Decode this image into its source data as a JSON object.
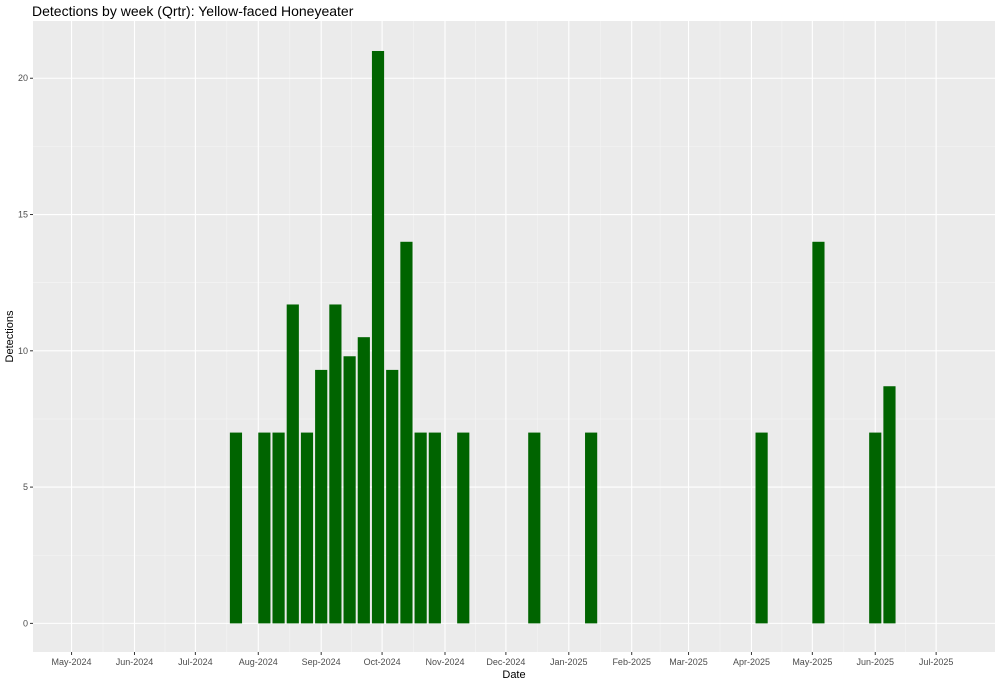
{
  "chart_data": {
    "type": "bar",
    "title": "Detections by week (Qrtr): Yellow-faced Honeyeater",
    "xlabel": "Date",
    "ylabel": "Detections",
    "ylim": [
      0,
      22
    ],
    "yticks": [
      0,
      5,
      10,
      15,
      20
    ],
    "x_tick_labels": [
      "May-2024",
      "Jun-2024",
      "Jul-2024",
      "Aug-2024",
      "Sep-2024",
      "Oct-2024",
      "Nov-2024",
      "Dec-2024",
      "Jan-2025",
      "Feb-2025",
      "Mar-2025",
      "Apr-2025",
      "May-2025",
      "Jun-2025",
      "Jul-2025"
    ],
    "x_ticks": [
      "2024-05-01",
      "2024-06-01",
      "2024-07-01",
      "2024-08-01",
      "2024-09-01",
      "2024-10-01",
      "2024-11-01",
      "2024-12-01",
      "2025-01-01",
      "2025-02-01",
      "2025-03-01",
      "2025-04-01",
      "2025-05-01",
      "2025-06-01",
      "2025-07-01"
    ],
    "xlim": [
      "2024-04-12",
      "2025-07-30"
    ],
    "grid": true,
    "bar_color": "#006400",
    "panel_color": "#ebebeb",
    "data": [
      {
        "week": "2024-07-21",
        "value": 7
      },
      {
        "week": "2024-08-04",
        "value": 7
      },
      {
        "week": "2024-08-11",
        "value": 7
      },
      {
        "week": "2024-08-18",
        "value": 11.7
      },
      {
        "week": "2024-08-25",
        "value": 7
      },
      {
        "week": "2024-09-01",
        "value": 9.3
      },
      {
        "week": "2024-09-08",
        "value": 11.7
      },
      {
        "week": "2024-09-15",
        "value": 9.8
      },
      {
        "week": "2024-09-22",
        "value": 10.5
      },
      {
        "week": "2024-09-29",
        "value": 21
      },
      {
        "week": "2024-10-06",
        "value": 9.3
      },
      {
        "week": "2024-10-13",
        "value": 14
      },
      {
        "week": "2024-10-20",
        "value": 7
      },
      {
        "week": "2024-10-27",
        "value": 7
      },
      {
        "week": "2024-11-10",
        "value": 7
      },
      {
        "week": "2024-12-15",
        "value": 7
      },
      {
        "week": "2025-01-12",
        "value": 7
      },
      {
        "week": "2025-04-06",
        "value": 7
      },
      {
        "week": "2025-05-04",
        "value": 14
      },
      {
        "week": "2025-06-01",
        "value": 7
      },
      {
        "week": "2025-06-08",
        "value": 8.7
      }
    ]
  }
}
